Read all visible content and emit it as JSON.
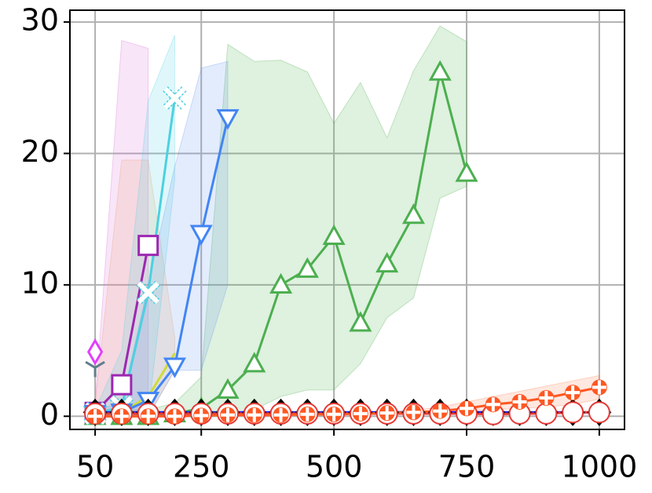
{
  "chart_data": {
    "type": "line",
    "xlim": [
      2.5,
      1047.5
    ],
    "ylim": [
      -1,
      30.9
    ],
    "xticks": [
      50,
      250,
      500,
      750,
      1000
    ],
    "yticks": [
      0,
      10,
      20,
      30
    ],
    "grid": true,
    "series": [
      {
        "color": "#4caf50",
        "band_color": "#4caf50",
        "marker": "triangle-up",
        "x": [
          50,
          100,
          150,
          200,
          250,
          300,
          350,
          400,
          450,
          500,
          550,
          600,
          650,
          700,
          750
        ],
        "values": [
          0,
          0,
          0,
          0.2,
          0.6,
          2,
          4,
          10,
          11.2,
          13.7,
          7.1,
          11.6,
          15.3,
          26.2,
          18.5
        ],
        "upper": [
          0.5,
          0.5,
          0.5,
          1,
          3,
          28.3,
          27,
          27.1,
          26.2,
          22.3,
          25.4,
          21.2,
          26.3,
          29.7,
          28.5
        ],
        "lower": [
          0,
          0,
          0,
          0,
          0,
          0,
          0.5,
          1.5,
          2,
          2,
          4,
          7.5,
          9,
          16.6,
          17.5
        ]
      },
      {
        "color": "#f4a460",
        "band_color": "#f4a460",
        "marker": "none",
        "line_color": "#cddc39",
        "x": [
          50,
          100,
          150,
          200
        ],
        "values": [
          0.5,
          0.3,
          1.5,
          4.8
        ],
        "upper": [
          1,
          19.5,
          19.5,
          6
        ],
        "lower": [
          0,
          0,
          0,
          3.5
        ]
      },
      {
        "color": "#9c27b0",
        "band_color": "#da70d6",
        "marker": "square",
        "x": [
          50,
          100,
          150
        ],
        "values": [
          0.3,
          2.4,
          13
        ],
        "upper": [
          1,
          28.6,
          28
        ],
        "lower": [
          0,
          0,
          0
        ]
      },
      {
        "color": "#4dd0e1",
        "band_color": "#4dd0e1",
        "marker": "x",
        "x": [
          50,
          100,
          150,
          200
        ],
        "values": [
          0.2,
          0.7,
          9.4,
          24.2
        ],
        "upper": [
          0.5,
          5,
          24,
          29
        ],
        "lower": [
          0,
          0,
          0,
          18
        ]
      },
      {
        "color": "#4285f4",
        "band_color": "#6495ed",
        "marker": "triangle-down",
        "x": [
          50,
          100,
          150,
          200,
          250,
          300
        ],
        "values": [
          0.2,
          0.3,
          1.2,
          3.8,
          13.9,
          22.7
        ],
        "upper": [
          0.5,
          1,
          10,
          19,
          26.5,
          27
        ],
        "lower": [
          0,
          0,
          0,
          3.5,
          3.5,
          10
        ]
      },
      {
        "color": "#e040fb",
        "marker": "diamond",
        "x": [
          50
        ],
        "values": [
          4.9
        ]
      },
      {
        "color": "#607d8b",
        "marker": "tri-down",
        "x": [
          50
        ],
        "values": [
          3.7
        ]
      },
      {
        "color": "#1a1aff",
        "marker": "diamond-black",
        "x": [
          50,
          100,
          150,
          200,
          250,
          300,
          350,
          400,
          450,
          500,
          550,
          600,
          650,
          700,
          750,
          800,
          850,
          900,
          950,
          1000
        ],
        "values": [
          0.3,
          0.3,
          0.3,
          0.3,
          0.3,
          0.3,
          0.3,
          0.3,
          0.3,
          0.3,
          0.3,
          0.3,
          0.3,
          0.3,
          0.3,
          0.3,
          0.3,
          0.3,
          0.3,
          0.3
        ]
      },
      {
        "color": "#e53935",
        "marker": "circle",
        "x": [
          50,
          100,
          150,
          200,
          250,
          300,
          350,
          400,
          450,
          500,
          550,
          600,
          650,
          700,
          750,
          800,
          850,
          900,
          950,
          1000
        ],
        "values": [
          0.2,
          0.2,
          0.2,
          0.2,
          0.2,
          0.2,
          0.2,
          0.2,
          0.2,
          0.2,
          0.2,
          0.2,
          0.2,
          0.2,
          0.2,
          0.15,
          0.2,
          0.2,
          0.3,
          0.3
        ]
      },
      {
        "color": "#ff5722",
        "band_color": "#ff7f50",
        "marker": "plus",
        "x": [
          50,
          100,
          150,
          200,
          250,
          300,
          350,
          400,
          450,
          500,
          550,
          600,
          650,
          700,
          750,
          800,
          850,
          900,
          950,
          1000
        ],
        "values": [
          0,
          0,
          0,
          0,
          0.05,
          0.1,
          0.1,
          0.1,
          0.15,
          0.15,
          0.2,
          0.25,
          0.3,
          0.4,
          0.6,
          0.9,
          1.1,
          1.4,
          1.8,
          2.2
        ],
        "upper": [
          0.1,
          0.1,
          0.1,
          0.1,
          0.15,
          0.2,
          0.2,
          0.2,
          0.25,
          0.25,
          0.3,
          0.35,
          0.45,
          0.7,
          1.1,
          1.5,
          1.9,
          2.3,
          2.7,
          3.1
        ],
        "lower": [
          0,
          0,
          0,
          0,
          0,
          0,
          0,
          0,
          0.05,
          0.05,
          0.1,
          0.15,
          0.2,
          0.2,
          0.3,
          0.5,
          0.6,
          0.7,
          0.9,
          1.3
        ]
      }
    ]
  }
}
